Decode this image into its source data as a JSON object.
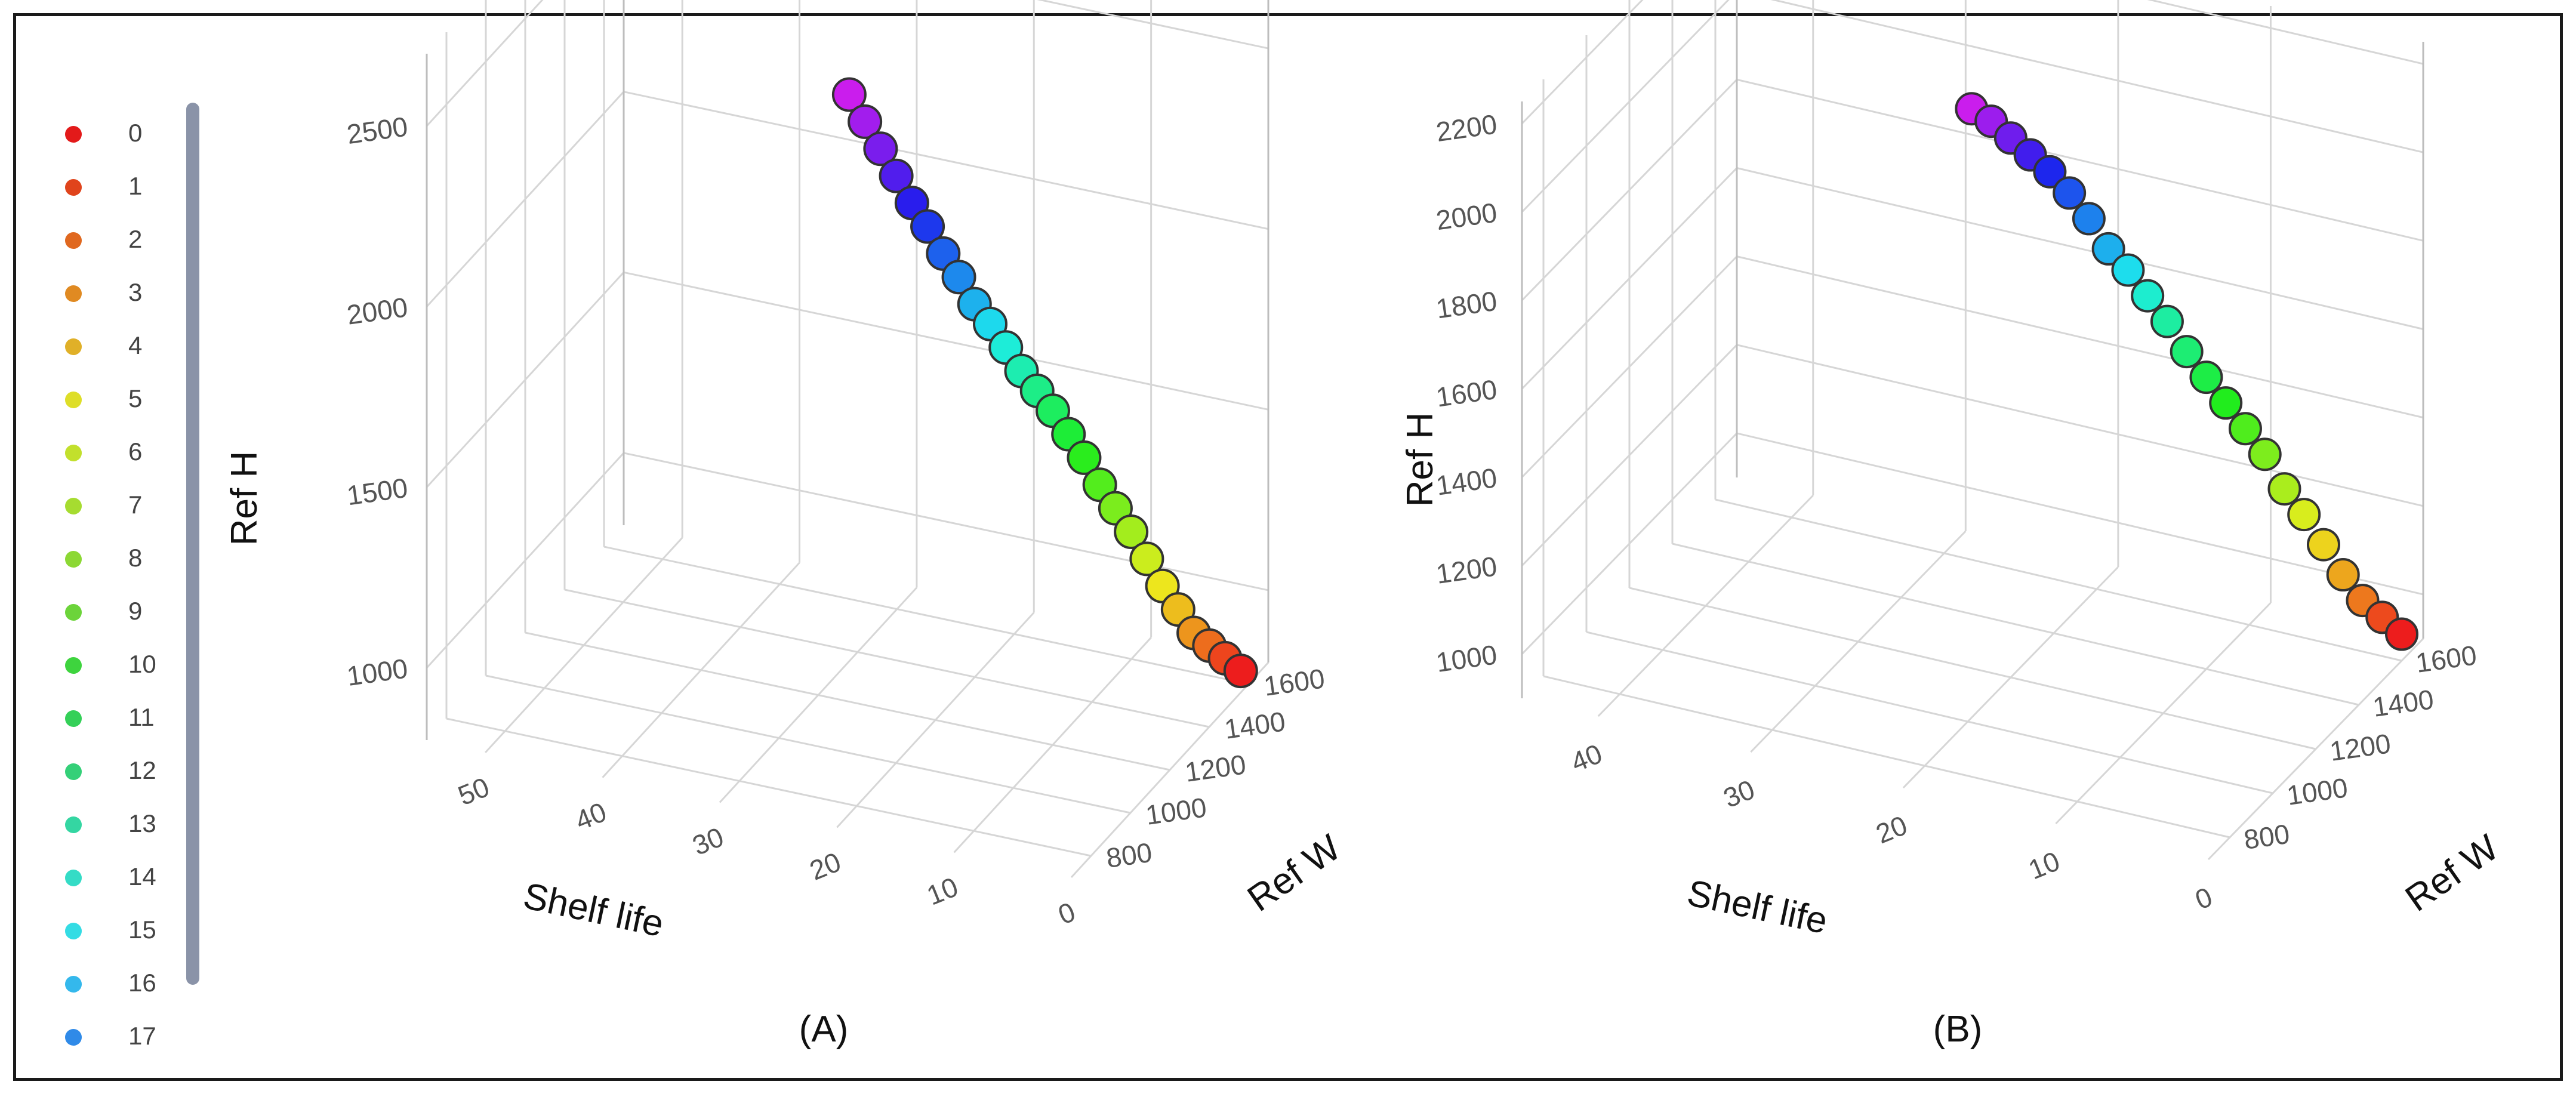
{
  "legend": {
    "items": [
      {
        "label": "0",
        "color": "#e31a1a"
      },
      {
        "label": "1",
        "color": "#e0441c"
      },
      {
        "label": "2",
        "color": "#e0681f"
      },
      {
        "label": "3",
        "color": "#e08a22"
      },
      {
        "label": "4",
        "color": "#e0b028"
      },
      {
        "label": "5",
        "color": "#dede28"
      },
      {
        "label": "6",
        "color": "#c2e02c"
      },
      {
        "label": "7",
        "color": "#a6dc30"
      },
      {
        "label": "8",
        "color": "#8cd834"
      },
      {
        "label": "9",
        "color": "#6cd43a"
      },
      {
        "label": "10",
        "color": "#3ed43e"
      },
      {
        "label": "11",
        "color": "#34d058"
      },
      {
        "label": "12",
        "color": "#34d078"
      },
      {
        "label": "13",
        "color": "#34d6a2"
      },
      {
        "label": "14",
        "color": "#34dcc6"
      },
      {
        "label": "15",
        "color": "#34dce4"
      },
      {
        "label": "16",
        "color": "#34b8ec"
      },
      {
        "label": "17",
        "color": "#2f8ae8"
      }
    ]
  },
  "chart_data": [
    {
      "type": "scatter3d",
      "caption": "(A)",
      "xlabel": "Shelf life",
      "ylabel": "Ref W",
      "zlabel": "Ref H",
      "x_ticks": [
        "0",
        "10",
        "20",
        "30",
        "40",
        "50"
      ],
      "y_ticks": [
        "800",
        "1000",
        "1200",
        "1400",
        "1600"
      ],
      "z_ticks": [
        "1000",
        "1500",
        "2000",
        "2500"
      ],
      "xlim": [
        0,
        55
      ],
      "ylim": [
        700,
        1700
      ],
      "zlim": [
        800,
        2700
      ],
      "points": [
        {
          "shelf_life": 0,
          "ref_w": 1560,
          "ref_h": 860
        },
        {
          "shelf_life": 1,
          "ref_w": 1540,
          "ref_h": 900
        },
        {
          "shelf_life": 2,
          "ref_w": 1520,
          "ref_h": 940
        },
        {
          "shelf_life": 3,
          "ref_w": 1500,
          "ref_h": 980
        },
        {
          "shelf_life": 4,
          "ref_w": 1480,
          "ref_h": 1050
        },
        {
          "shelf_life": 5,
          "ref_w": 1460,
          "ref_h": 1120
        },
        {
          "shelf_life": 6,
          "ref_w": 1440,
          "ref_h": 1200
        },
        {
          "shelf_life": 7,
          "ref_w": 1420,
          "ref_h": 1280
        },
        {
          "shelf_life": 8,
          "ref_w": 1400,
          "ref_h": 1350
        },
        {
          "shelf_life": 9,
          "ref_w": 1380,
          "ref_h": 1420
        },
        {
          "shelf_life": 10,
          "ref_w": 1360,
          "ref_h": 1500
        },
        {
          "shelf_life": 11,
          "ref_w": 1340,
          "ref_h": 1570
        },
        {
          "shelf_life": 12,
          "ref_w": 1320,
          "ref_h": 1640
        },
        {
          "shelf_life": 13,
          "ref_w": 1300,
          "ref_h": 1700
        },
        {
          "shelf_life": 14,
          "ref_w": 1280,
          "ref_h": 1760
        },
        {
          "shelf_life": 15,
          "ref_w": 1260,
          "ref_h": 1830
        },
        {
          "shelf_life": 16,
          "ref_w": 1240,
          "ref_h": 1900
        },
        {
          "shelf_life": 17,
          "ref_w": 1220,
          "ref_h": 1960
        },
        {
          "shelf_life": 18,
          "ref_w": 1200,
          "ref_h": 2040
        },
        {
          "shelf_life": 19,
          "ref_w": 1180,
          "ref_h": 2110
        },
        {
          "shelf_life": 20,
          "ref_w": 1160,
          "ref_h": 2190
        },
        {
          "shelf_life": 21,
          "ref_w": 1140,
          "ref_h": 2260
        },
        {
          "shelf_life": 22,
          "ref_w": 1120,
          "ref_h": 2340
        },
        {
          "shelf_life": 23,
          "ref_w": 1100,
          "ref_h": 2420
        },
        {
          "shelf_life": 24,
          "ref_w": 1080,
          "ref_h": 2500
        },
        {
          "shelf_life": 25,
          "ref_w": 1060,
          "ref_h": 2580
        }
      ]
    },
    {
      "type": "scatter3d",
      "caption": "(B)",
      "xlabel": "Shelf life",
      "ylabel": "Ref W",
      "zlabel": "Ref H",
      "x_ticks": [
        "0",
        "10",
        "20",
        "30",
        "40"
      ],
      "y_ticks": [
        "800",
        "1000",
        "1200",
        "1400",
        "1600"
      ],
      "z_ticks": [
        "1000",
        "1200",
        "1400",
        "1600",
        "1800",
        "2000",
        "2200"
      ],
      "xlim": [
        0,
        45
      ],
      "ylim": [
        700,
        1700
      ],
      "zlim": [
        900,
        2250
      ],
      "points": [
        {
          "shelf_life": 0,
          "ref_w": 1600,
          "ref_h": 960
        },
        {
          "shelf_life": 1,
          "ref_w": 1580,
          "ref_h": 1000
        },
        {
          "shelf_life": 2,
          "ref_w": 1560,
          "ref_h": 1040
        },
        {
          "shelf_life": 3,
          "ref_w": 1540,
          "ref_h": 1100
        },
        {
          "shelf_life": 4,
          "ref_w": 1520,
          "ref_h": 1170
        },
        {
          "shelf_life": 5,
          "ref_w": 1500,
          "ref_h": 1240
        },
        {
          "shelf_life": 6,
          "ref_w": 1480,
          "ref_h": 1300
        },
        {
          "shelf_life": 7,
          "ref_w": 1460,
          "ref_h": 1380
        },
        {
          "shelf_life": 8,
          "ref_w": 1440,
          "ref_h": 1440
        },
        {
          "shelf_life": 9,
          "ref_w": 1420,
          "ref_h": 1500
        },
        {
          "shelf_life": 10,
          "ref_w": 1400,
          "ref_h": 1560
        },
        {
          "shelf_life": 11,
          "ref_w": 1380,
          "ref_h": 1620
        },
        {
          "shelf_life": 12,
          "ref_w": 1360,
          "ref_h": 1690
        },
        {
          "shelf_life": 13,
          "ref_w": 1340,
          "ref_h": 1750
        },
        {
          "shelf_life": 14,
          "ref_w": 1320,
          "ref_h": 1810
        },
        {
          "shelf_life": 15,
          "ref_w": 1300,
          "ref_h": 1860
        },
        {
          "shelf_life": 16,
          "ref_w": 1280,
          "ref_h": 1930
        },
        {
          "shelf_life": 17,
          "ref_w": 1260,
          "ref_h": 1990
        },
        {
          "shelf_life": 18,
          "ref_w": 1240,
          "ref_h": 2040
        },
        {
          "shelf_life": 19,
          "ref_w": 1220,
          "ref_h": 2080
        },
        {
          "shelf_life": 20,
          "ref_w": 1200,
          "ref_h": 2120
        },
        {
          "shelf_life": 21,
          "ref_w": 1180,
          "ref_h": 2160
        },
        {
          "shelf_life": 22,
          "ref_w": 1160,
          "ref_h": 2190
        }
      ]
    }
  ]
}
